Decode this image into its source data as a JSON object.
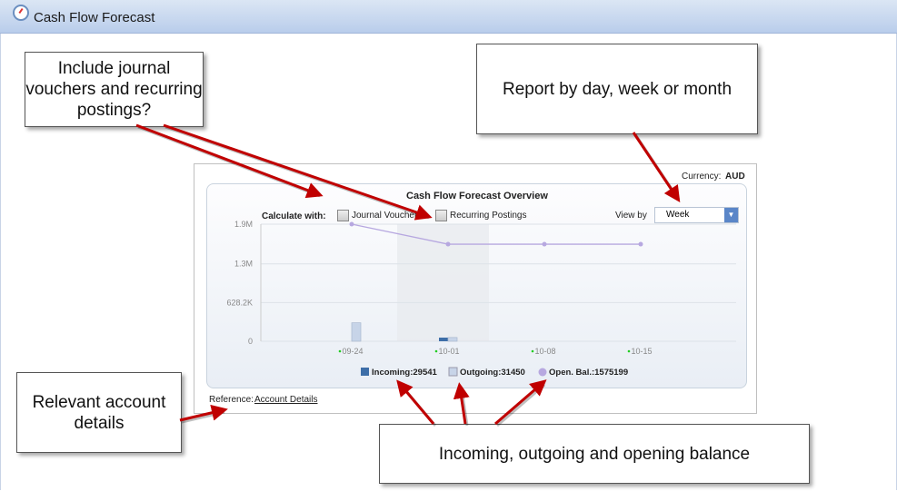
{
  "window": {
    "title": "Cash Flow Forecast",
    "icon": "gauge-icon"
  },
  "panel": {
    "currency_label": "Currency:",
    "currency": "AUD",
    "title": "Cash Flow Forecast Overview",
    "calculate_label": "Calculate with:",
    "options": [
      {
        "label": "Journal Vouchers",
        "checked": false
      },
      {
        "label": "Recurring Postings",
        "checked": false
      }
    ],
    "view_by_label": "View by",
    "view_by": "Week",
    "reference_label": "Reference:",
    "reference_link": "Account Details"
  },
  "chart_data": {
    "type": "bar",
    "categories": [
      "09-24",
      "10-01",
      "10-08",
      "10-15"
    ],
    "yticks": [
      "0",
      "628.2K",
      "1.3M",
      "1.9M"
    ],
    "ylim": [
      0,
      1900000
    ],
    "series": [
      {
        "name": "Incoming",
        "type": "bar",
        "color": "#3d6ea8",
        "values": [
          0,
          29541,
          0,
          0
        ]
      },
      {
        "name": "Outgoing",
        "type": "bar",
        "color": "#c7d4e8",
        "values": [
          300000,
          31450,
          0,
          0
        ]
      },
      {
        "name": "Open. Bal.",
        "type": "line",
        "color": "#b7a8e0",
        "values": [
          1900000,
          1575199,
          1575199,
          1575199
        ]
      }
    ],
    "legend": [
      {
        "label": "Incoming:29541"
      },
      {
        "label": "Outgoing:31450"
      },
      {
        "label": "Open.  Bal.:1575199"
      }
    ],
    "legend_position": "bottom",
    "grid": true
  },
  "callouts": [
    "Include journal vouchers and recurring postings?",
    "Report by day, week or month",
    "Relevant account details",
    "Incoming, outgoing and opening balance"
  ],
  "colors": {
    "arrow": "#c00000",
    "accent": "#5a86c8"
  }
}
